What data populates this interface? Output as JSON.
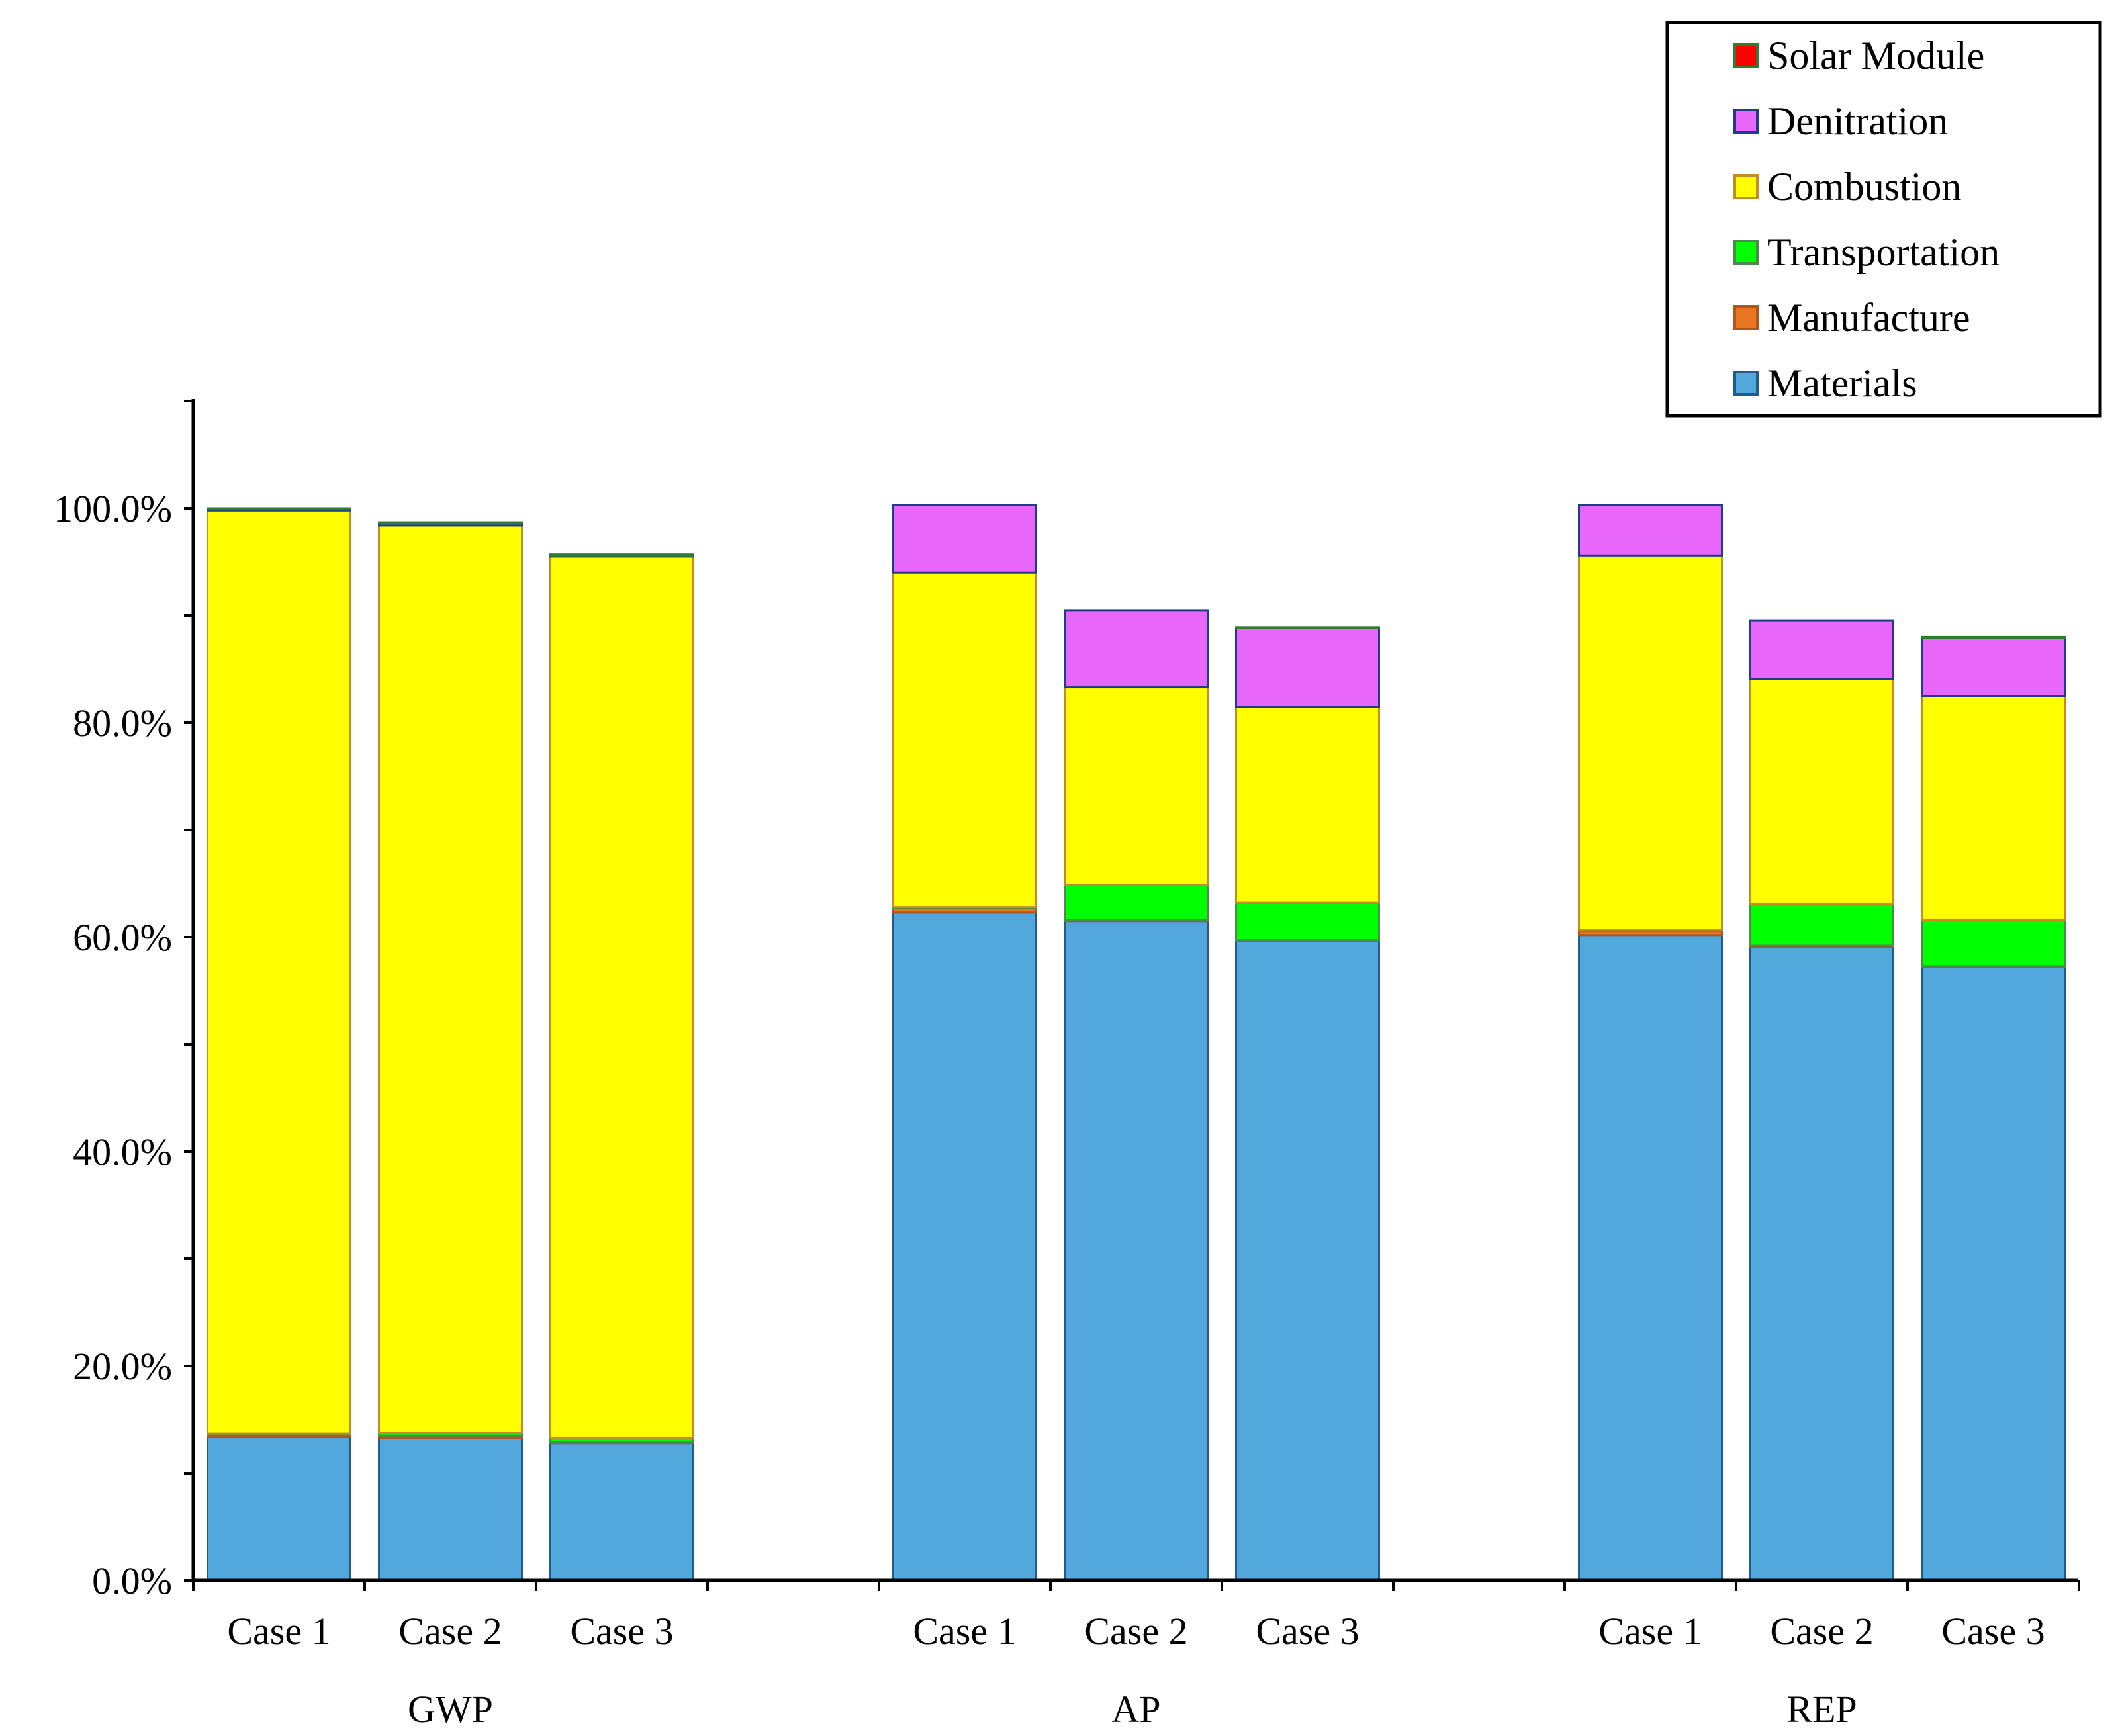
{
  "chart_data": {
    "type": "bar",
    "stacked": true,
    "title": "",
    "xlabel": "",
    "ylabel": "",
    "ylim": [
      0,
      110
    ],
    "y_tick_step": 20,
    "y_tick_format": "percent-1dp",
    "y_tick_labels": [
      "0.0%",
      "20.0%",
      "40.0%",
      "60.0%",
      "80.0%",
      "100.0%"
    ],
    "grid": false,
    "legend_position": "top-right",
    "groups": [
      {
        "name": "GWP",
        "categories": [
          "Case 1",
          "Case 2",
          "Case 3"
        ]
      },
      {
        "name": "AP",
        "categories": [
          "Case 1",
          "Case 2",
          "Case 3"
        ]
      },
      {
        "name": "REP",
        "categories": [
          "Case 1",
          "Case 2",
          "Case 3"
        ]
      }
    ],
    "series": [
      {
        "name": "Materials",
        "color": "#52A8DD",
        "stroke": "#1F5C8A",
        "values": [
          13.4,
          13.3,
          12.8,
          62.3,
          61.5,
          59.6,
          60.2,
          59.1,
          57.2
        ]
      },
      {
        "name": "Manufacture",
        "color": "#E87722",
        "stroke": "#B0561A",
        "values": [
          0.2,
          0.2,
          0.1,
          0.4,
          0.1,
          0.1,
          0.4,
          0.1,
          0.1
        ]
      },
      {
        "name": "Transportation",
        "color": "#00FF00",
        "stroke": "#4E8A4E",
        "values": [
          0.1,
          0.3,
          0.4,
          0.1,
          3.3,
          3.5,
          0.1,
          3.9,
          4.3
        ]
      },
      {
        "name": "Combustion",
        "color": "#FFFF00",
        "stroke": "#C58A2A",
        "values": [
          86.1,
          84.6,
          82.2,
          31.2,
          18.4,
          18.3,
          34.9,
          21.0,
          20.9
        ]
      },
      {
        "name": "Denitration",
        "color": "#E866F9",
        "stroke": "#1F3C8A",
        "values": [
          0.1,
          0.2,
          0.1,
          6.3,
          7.2,
          7.3,
          4.7,
          5.4,
          5.4
        ]
      },
      {
        "name": "Solar Module",
        "color": "#FF0000",
        "stroke": "#2E7D32",
        "values": [
          0.1,
          0.1,
          0.1,
          0.0,
          0.0,
          0.1,
          0.0,
          0.0,
          0.1
        ]
      }
    ],
    "legend_order": [
      "Solar Module",
      "Denitration",
      "Combustion",
      "Transportation",
      "Manufacture",
      "Materials"
    ]
  }
}
